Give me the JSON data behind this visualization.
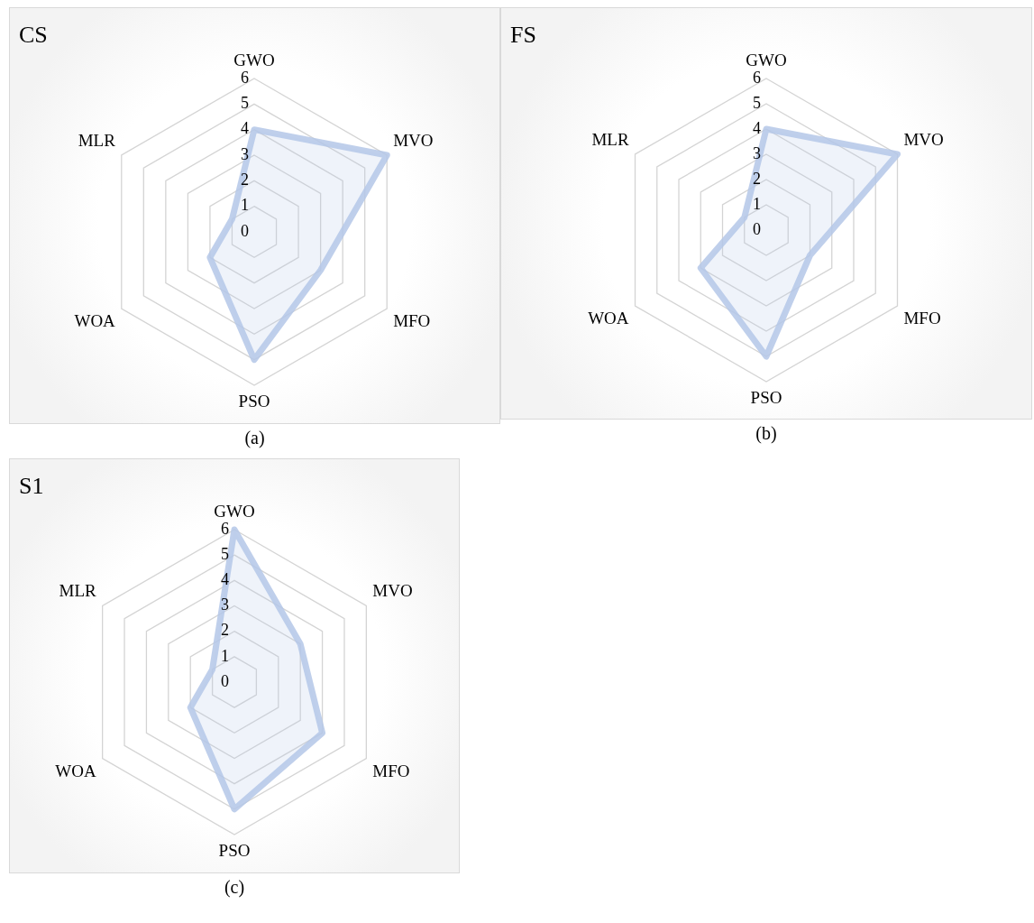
{
  "chart_data": [
    {
      "type": "radar",
      "title": "CS",
      "categories": [
        "GWO",
        "MVO",
        "MFO",
        "PSO",
        "WOA",
        "MLR"
      ],
      "series": [
        {
          "color": "#b4c7e7",
          "values": [
            4,
            6,
            3,
            5,
            2,
            1
          ]
        }
      ],
      "ylim": [
        0,
        6
      ],
      "yticks": [
        0,
        1,
        2,
        3,
        4,
        5,
        6
      ],
      "grid": true,
      "marker": "none",
      "annotations": [
        "(a)"
      ]
    },
    {
      "type": "radar",
      "title": "FS",
      "categories": [
        "GWO",
        "MVO",
        "MFO",
        "PSO",
        "WOA",
        "MLR"
      ],
      "series": [
        {
          "color": "#b4c7e7",
          "values": [
            4,
            6,
            2,
            5,
            3,
            1
          ]
        }
      ],
      "ylim": [
        0,
        6
      ],
      "yticks": [
        0,
        1,
        2,
        3,
        4,
        5,
        6
      ],
      "grid": true,
      "marker": "none",
      "annotations": [
        "(b)"
      ]
    },
    {
      "type": "radar",
      "title": "S1",
      "categories": [
        "GWO",
        "MVO",
        "MFO",
        "PSO",
        "WOA",
        "MLR"
      ],
      "series": [
        {
          "color": "#b4c7e7",
          "values": [
            6,
            3,
            4,
            5,
            2,
            1
          ]
        }
      ],
      "ylim": [
        0,
        6
      ],
      "yticks": [
        0,
        1,
        2,
        3,
        4,
        5,
        6
      ],
      "grid": true,
      "marker": "none",
      "annotations": [
        "(c)"
      ]
    }
  ]
}
